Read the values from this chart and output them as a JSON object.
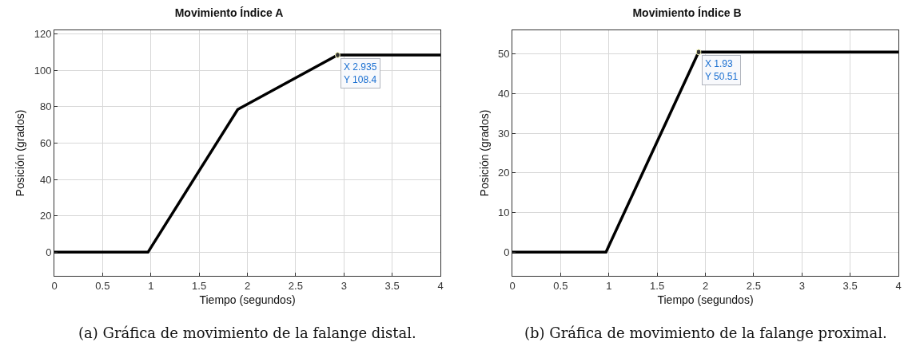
{
  "chart_data": [
    {
      "type": "line",
      "title": "Movimiento Índice A",
      "xlabel": "Tiempo (segundos)",
      "ylabel": "Posición (grados)",
      "x": [
        0,
        0.97,
        1.9,
        2.935,
        4
      ],
      "series": [
        {
          "color": "#000000",
          "values": [
            0,
            0,
            78.5,
            108.4,
            108.4
          ]
        }
      ],
      "xlim": [
        0,
        4
      ],
      "xticks": [
        0,
        0.5,
        1,
        1.5,
        2,
        2.5,
        3,
        3.5,
        4
      ],
      "ylim": [
        -13,
        122
      ],
      "yticks": [
        0,
        20,
        40,
        60,
        80,
        100,
        120
      ],
      "grid": true,
      "marker": "none",
      "line_style": "solid",
      "annotations": [
        {
          "text": "X 2.935\nY 108.4",
          "x": 2.935,
          "y": 108.4
        },
        "(a) Gráfica de movimiento de la falange distal."
      ]
    },
    {
      "type": "line",
      "title": "Movimiento Índice B",
      "xlabel": "Tiempo (segundos)",
      "ylabel": "Posición (grados)",
      "x": [
        0,
        0.97,
        1.93,
        4
      ],
      "series": [
        {
          "color": "#000000",
          "values": [
            0,
            0,
            50.51,
            50.51
          ]
        }
      ],
      "xlim": [
        0,
        4
      ],
      "xticks": [
        0,
        0.5,
        1,
        1.5,
        2,
        2.5,
        3,
        3.5,
        4
      ],
      "ylim": [
        -6,
        56
      ],
      "yticks": [
        0,
        10,
        20,
        30,
        40,
        50
      ],
      "grid": true,
      "marker": "none",
      "line_style": "solid",
      "annotations": [
        {
          "text": "X 1.93\nY 50.51",
          "x": 1.93,
          "y": 50.51
        },
        "(b) Gráfica de movimiento de la falange proximal."
      ]
    }
  ]
}
